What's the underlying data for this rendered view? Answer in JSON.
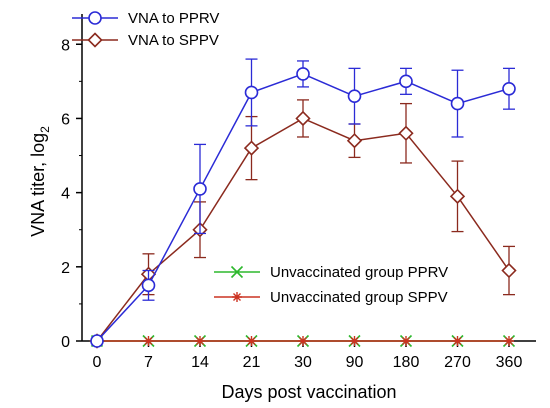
{
  "chart_data": {
    "type": "line",
    "title": "",
    "xlabel": "Days post vaccination",
    "ylabel_main": "VNA titer, log",
    "ylabel_sub": "2",
    "categories": [
      "0",
      "7",
      "14",
      "21",
      "30",
      "90",
      "180",
      "270",
      "360"
    ],
    "ylim": [
      0,
      8.6
    ],
    "yticks": [
      0,
      2,
      4,
      6,
      8
    ],
    "grid": false,
    "series": [
      {
        "name": "VNA to PPRV",
        "color": "#2b2bd6",
        "marker": "circle",
        "values": [
          0,
          1.5,
          4.1,
          6.7,
          7.2,
          6.6,
          7.0,
          6.4,
          6.8
        ],
        "errors": [
          0,
          0.4,
          1.2,
          0.9,
          0.35,
          0.75,
          0.35,
          0.9,
          0.55
        ]
      },
      {
        "name": "VNA to SPPV",
        "color": "#8b2a1e",
        "marker": "diamond",
        "values": [
          0,
          1.8,
          3.0,
          5.2,
          6.0,
          5.4,
          5.6,
          3.9,
          1.9
        ],
        "errors": [
          0,
          0.55,
          0.75,
          0.85,
          0.5,
          0.45,
          0.8,
          0.95,
          0.65
        ]
      },
      {
        "name": "Unvaccinated group PPRV",
        "color": "#2db82d",
        "marker": "x",
        "values": [
          0,
          0,
          0,
          0,
          0,
          0,
          0,
          0,
          0
        ],
        "errors": [
          0,
          0,
          0,
          0,
          0,
          0,
          0,
          0,
          0
        ]
      },
      {
        "name": "Unvaccinated group SPPV",
        "color": "#cc3322",
        "marker": "star",
        "values": [
          0,
          0,
          0,
          0,
          0,
          0,
          0,
          0,
          0
        ],
        "errors": [
          0,
          0,
          0,
          0,
          0,
          0,
          0,
          0,
          0
        ]
      }
    ],
    "legends": [
      {
        "placement": "top-left",
        "entries": [
          0,
          1
        ]
      },
      {
        "placement": "center-right",
        "entries": [
          2,
          3
        ]
      }
    ]
  }
}
